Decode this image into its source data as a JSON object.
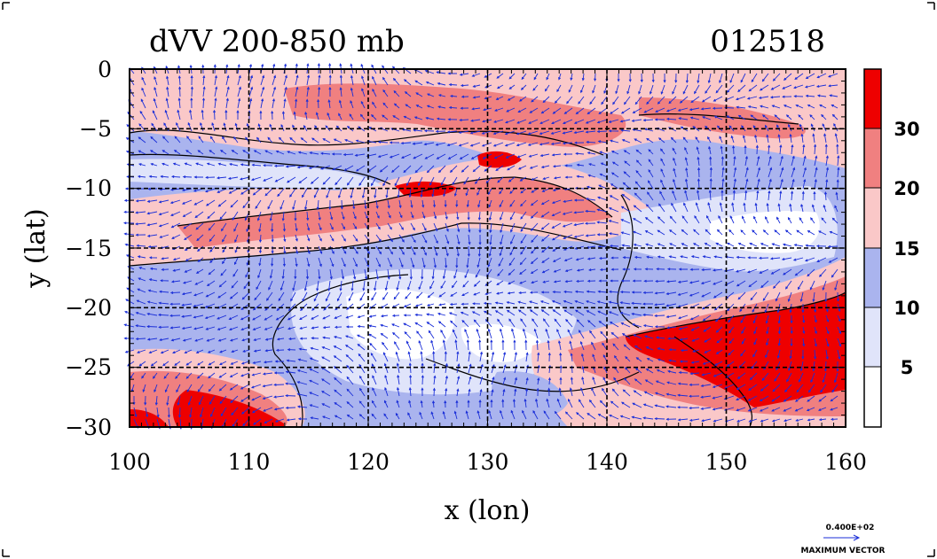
{
  "chart_data": {
    "type": "heatmap",
    "title": "dVV 200-850 mb",
    "title_right": "012518",
    "xlabel": "x (lon)",
    "ylabel": "y (lat)",
    "xlim": [
      100,
      160
    ],
    "ylim": [
      -30,
      0
    ],
    "xticks": [
      "100",
      "110",
      "120",
      "130",
      "140",
      "150",
      "160"
    ],
    "yticks": [
      "0",
      "−5",
      "−10",
      "−15",
      "−20",
      "−25",
      "−30"
    ],
    "grid": true,
    "colorbar": {
      "levels": [
        "5",
        "10",
        "15",
        "20",
        "30"
      ],
      "colors": [
        "#ffffff",
        "#e0e4fa",
        "#aab4ee",
        "#fac8c8",
        "#f08080",
        "#ee0000"
      ]
    },
    "vector_legend": {
      "magnitude": "0.400E+02",
      "label": "MAXIMUM VECTOR"
    }
  }
}
